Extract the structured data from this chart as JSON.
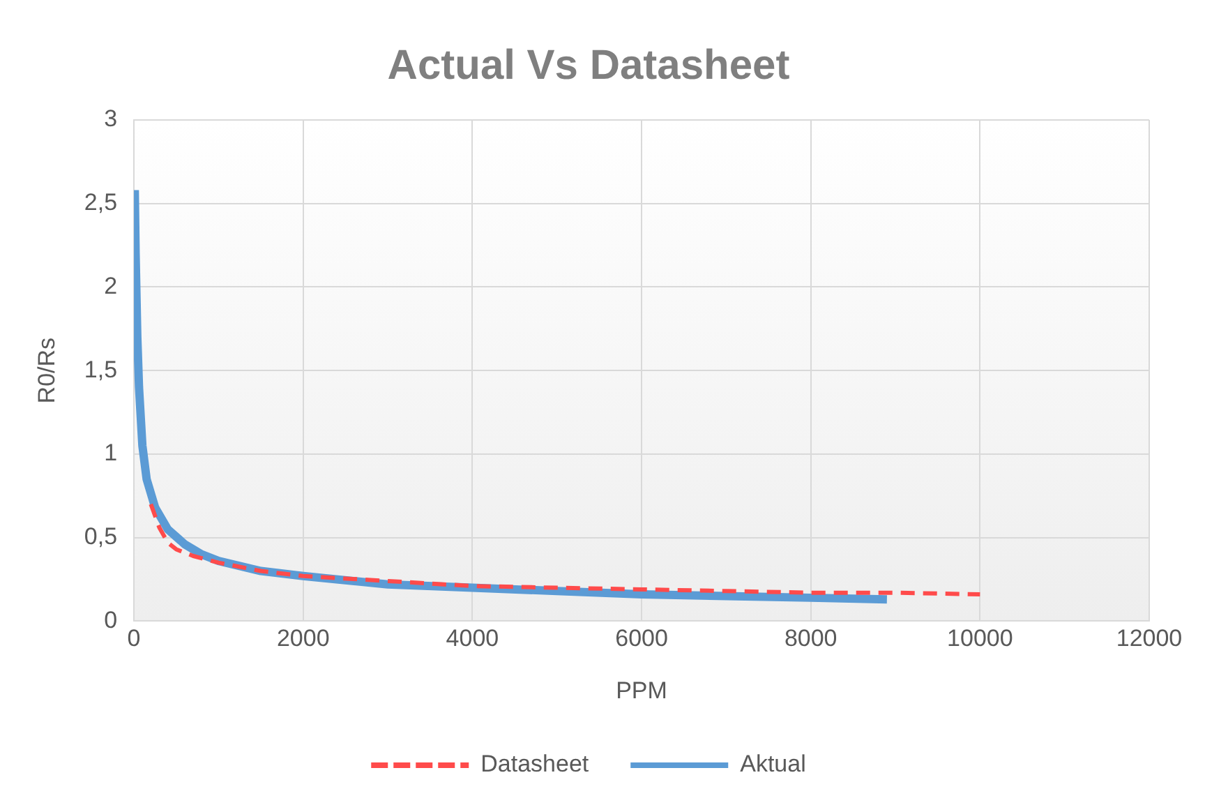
{
  "chart_data": {
    "type": "line",
    "title": "Actual Vs Datasheet",
    "xlabel": "PPM",
    "ylabel": "R0/Rs",
    "xlim": [
      0,
      12000
    ],
    "xticks": [
      0,
      2000,
      4000,
      6000,
      8000,
      10000,
      12000
    ],
    "ylim": [
      0,
      3
    ],
    "yticks": [
      0,
      {
        "value": 0.5,
        "label": "0,5"
      },
      1,
      {
        "value": 1.5,
        "label": "1,5"
      },
      2,
      {
        "value": 2.5,
        "label": "2,5"
      },
      3
    ],
    "grid": true,
    "legend": "bottom",
    "marker": "none",
    "series": [
      {
        "name": "Datasheet",
        "color": "#ff4b4b",
        "line_style": "dashed",
        "x": [
          200,
          300,
          400,
          500,
          700,
          1000,
          1500,
          2000,
          3000,
          4000,
          5000,
          6000,
          7000,
          8000,
          9000,
          10000
        ],
        "values": [
          0.7,
          0.56,
          0.47,
          0.43,
          0.39,
          0.35,
          0.3,
          0.27,
          0.24,
          0.21,
          0.2,
          0.19,
          0.18,
          0.17,
          0.17,
          0.16
        ]
      },
      {
        "name": "Aktual",
        "color": "#5b9bd5",
        "line_style": "solid",
        "x": [
          10,
          20,
          40,
          60,
          100,
          150,
          250,
          400,
          600,
          800,
          1000,
          1500,
          2000,
          3000,
          4000,
          5000,
          6000,
          7000,
          8000,
          8900
        ],
        "values": [
          2.58,
          2.2,
          1.7,
          1.4,
          1.05,
          0.85,
          0.68,
          0.55,
          0.46,
          0.4,
          0.36,
          0.3,
          0.27,
          0.22,
          0.2,
          0.18,
          0.16,
          0.15,
          0.14,
          0.13
        ]
      }
    ]
  }
}
